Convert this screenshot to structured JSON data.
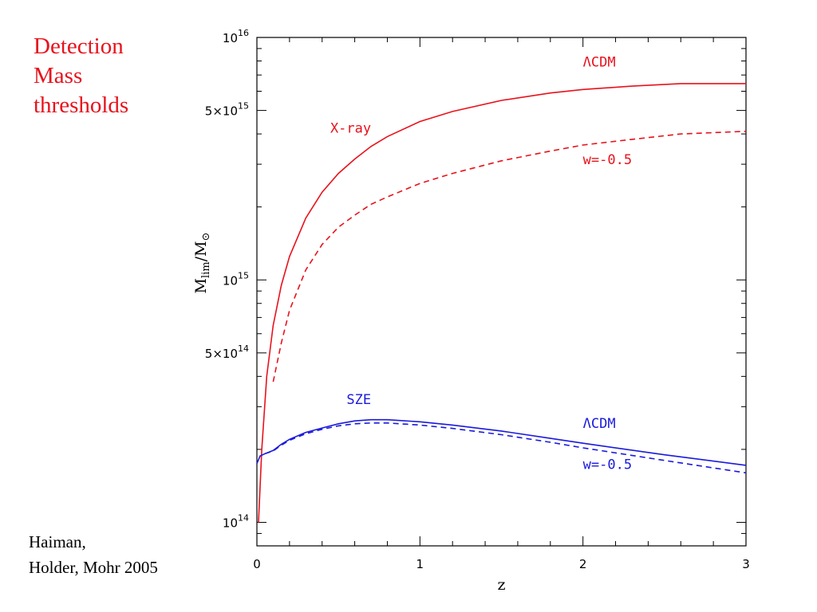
{
  "slide": {
    "title_lines": [
      "Detection",
      "Mass",
      "thresholds"
    ],
    "citation_lines": [
      "Haiman,",
      "Holder, Mohr 2005"
    ]
  },
  "chart_data": {
    "type": "line",
    "xlabel": "z",
    "ylabel": "M_lim/M_⊙",
    "ylabel_parts": {
      "main": "M",
      "sub": "lim",
      "slash": "/M",
      "sun": "⊙"
    },
    "x_scale": "linear",
    "y_scale": "log",
    "xlim": [
      0,
      3
    ],
    "ylim": [
      80000000000000.0,
      1e+16
    ],
    "x_ticks": [
      0,
      1,
      2,
      3
    ],
    "x_tick_labels": [
      "0",
      "1",
      "2",
      "3"
    ],
    "y_ticks": [
      100000000000000.0,
      500000000000000.0,
      1000000000000000.0,
      5000000000000000.0,
      1e+16
    ],
    "y_tick_labels": [
      {
        "value": 100000000000000.0,
        "mantissa": "",
        "base": "10",
        "exp": "14"
      },
      {
        "value": 500000000000000.0,
        "mantissa": "5×",
        "base": "10",
        "exp": "14"
      },
      {
        "value": 1000000000000000.0,
        "mantissa": "",
        "base": "10",
        "exp": "15"
      },
      {
        "value": 5000000000000000.0,
        "mantissa": "5×",
        "base": "10",
        "exp": "15"
      },
      {
        "value": 1e+16,
        "mantissa": "",
        "base": "10",
        "exp": "16"
      }
    ],
    "grid": false,
    "legend": "none",
    "series": [
      {
        "color": "#e8121c",
        "dash": "solid",
        "x": [
          0.01,
          0.03,
          0.06,
          0.1,
          0.15,
          0.2,
          0.3,
          0.4,
          0.5,
          0.6,
          0.7,
          0.8,
          1.0,
          1.2,
          1.5,
          1.8,
          2.0,
          2.3,
          2.6,
          3.0
        ],
        "y": [
          100000000000000.0,
          200000000000000.0,
          400000000000000.0,
          650000000000000.0,
          950000000000000.0,
          1250000000000000.0,
          1800000000000000.0,
          2300000000000000.0,
          2750000000000000.0,
          3150000000000000.0,
          3550000000000000.0,
          3900000000000000.0,
          4500000000000000.0,
          4950000000000000.0,
          5500000000000000.0,
          5900000000000000.0,
          6100000000000000.0,
          6300000000000000.0,
          6450000000000000.0,
          6450000000000000.0
        ]
      },
      {
        "color": "#e8121c",
        "dash": "dashed",
        "x": [
          0.1,
          0.15,
          0.2,
          0.3,
          0.4,
          0.5,
          0.6,
          0.7,
          0.8,
          1.0,
          1.2,
          1.5,
          1.8,
          2.0,
          2.3,
          2.6,
          3.0
        ],
        "y": [
          380000000000000.0,
          550000000000000.0,
          750000000000000.0,
          1100000000000000.0,
          1400000000000000.0,
          1650000000000000.0,
          1850000000000000.0,
          2050000000000000.0,
          2200000000000000.0,
          2500000000000000.0,
          2750000000000000.0,
          3100000000000000.0,
          3400000000000000.0,
          3600000000000000.0,
          3800000000000000.0,
          4000000000000000.0,
          4100000000000000.0
        ]
      },
      {
        "color": "#1a1adc",
        "dash": "solid",
        "x": [
          0.0,
          0.02,
          0.05,
          0.1,
          0.15,
          0.2,
          0.3,
          0.4,
          0.5,
          0.6,
          0.7,
          0.8,
          1.0,
          1.2,
          1.5,
          1.8,
          2.0,
          2.5,
          3.0
        ],
        "y": [
          175000000000000.0,
          188000000000000.0,
          192000000000000.0,
          198000000000000.0,
          210000000000000.0,
          220000000000000.0,
          235000000000000.0,
          245000000000000.0,
          255000000000000.0,
          262000000000000.0,
          265000000000000.0,
          265000000000000.0,
          260000000000000.0,
          252000000000000.0,
          238000000000000.0,
          222000000000000.0,
          212000000000000.0,
          190000000000000.0,
          172000000000000.0
        ]
      },
      {
        "color": "#1a1adc",
        "dash": "dashed",
        "x": [
          0.05,
          0.1,
          0.15,
          0.2,
          0.3,
          0.4,
          0.5,
          0.6,
          0.7,
          0.8,
          1.0,
          1.2,
          1.5,
          1.8,
          2.0,
          2.5,
          3.0
        ],
        "y": [
          192000000000000.0,
          197000000000000.0,
          208000000000000.0,
          218000000000000.0,
          232000000000000.0,
          242000000000000.0,
          250000000000000.0,
          255000000000000.0,
          257000000000000.0,
          257000000000000.0,
          252000000000000.0,
          244000000000000.0,
          230000000000000.0,
          214000000000000.0,
          203000000000000.0,
          180000000000000.0,
          160000000000000.0
        ]
      }
    ],
    "annotations": [
      {
        "text": "ΛCDM",
        "x": 2.0,
        "y": 7600000000000000.0,
        "color": "#e8121c"
      },
      {
        "text": "X-ray",
        "x": 0.45,
        "y": 4050000000000000.0,
        "color": "#e8121c"
      },
      {
        "text": "w=-0.5",
        "x": 2.0,
        "y": 3000000000000000.0,
        "color": "#e8121c"
      },
      {
        "text": "SZE",
        "x": 0.55,
        "y": 308000000000000.0,
        "color": "#1a1adc"
      },
      {
        "text": "ΛCDM",
        "x": 2.0,
        "y": 245000000000000.0,
        "color": "#1a1adc"
      },
      {
        "text": "w=-0.5",
        "x": 2.0,
        "y": 166000000000000.0,
        "color": "#1a1adc"
      }
    ]
  }
}
